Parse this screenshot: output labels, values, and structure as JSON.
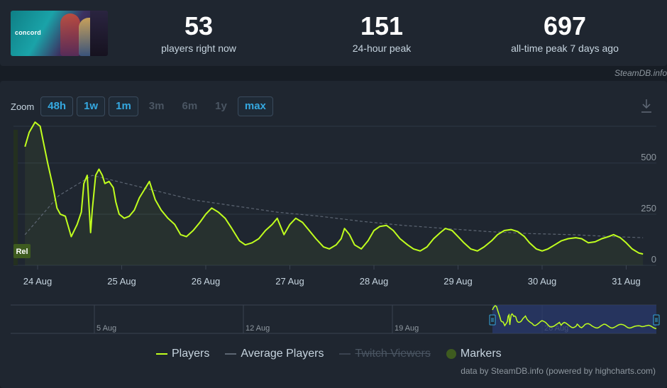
{
  "header": {
    "game_logo_text": "concord",
    "stats": [
      {
        "value": "53",
        "label": "players right now"
      },
      {
        "value": "151",
        "label": "24-hour peak"
      },
      {
        "value": "697",
        "label": "all-time peak 7 days ago"
      }
    ],
    "credit": "SteamDB.info"
  },
  "zoom": {
    "label": "Zoom",
    "buttons": [
      {
        "label": "48h",
        "enabled": true
      },
      {
        "label": "1w",
        "enabled": true
      },
      {
        "label": "1m",
        "enabled": true
      },
      {
        "label": "3m",
        "enabled": false
      },
      {
        "label": "6m",
        "enabled": false
      },
      {
        "label": "1y",
        "enabled": false
      },
      {
        "label": "max",
        "enabled": true
      }
    ]
  },
  "icons": {
    "download": "download-icon"
  },
  "colors": {
    "players": "#c0ff1e",
    "average": "#5d6673",
    "accent": "#35a8e0",
    "navigator_selection": "#2a3a6e"
  },
  "chart_data": {
    "type": "line",
    "x_range": [
      "2024-08-23 12:00",
      "2024-08-31 20:00"
    ],
    "xticks": [
      "24 Aug",
      "25 Aug",
      "26 Aug",
      "27 Aug",
      "28 Aug",
      "29 Aug",
      "30 Aug",
      "31 Aug"
    ],
    "ylim": [
      0,
      680
    ],
    "yticks": [
      "0",
      "250",
      "500"
    ],
    "grid": true,
    "annotation": "Rel",
    "series": [
      {
        "name": "Players",
        "x_days": [
          0,
          0.05,
          0.12,
          0.18,
          0.22,
          0.27,
          0.33,
          0.38,
          0.42,
          0.48,
          0.55,
          0.62,
          0.67,
          0.7,
          0.74,
          0.78,
          0.8,
          0.84,
          0.88,
          0.92,
          0.95,
          1.0,
          1.05,
          1.08,
          1.12,
          1.18,
          1.24,
          1.3,
          1.36,
          1.42,
          1.48,
          1.55,
          1.62,
          1.7,
          1.78,
          1.85,
          1.92,
          2.0,
          2.08,
          2.15,
          2.22,
          2.3,
          2.38,
          2.46,
          2.55,
          2.62,
          2.7,
          2.78,
          2.86,
          2.94,
          3.0,
          3.08,
          3.15,
          3.22,
          3.3,
          3.38,
          3.46,
          3.55,
          3.62,
          3.7,
          3.76,
          3.8,
          3.86,
          3.92,
          4.0,
          4.08,
          4.15,
          4.22,
          4.3,
          4.38,
          4.46,
          4.55,
          4.62,
          4.7,
          4.78,
          4.86,
          4.94,
          5.0,
          5.08,
          5.15,
          5.22,
          5.3,
          5.38,
          5.46,
          5.55,
          5.62,
          5.7,
          5.78,
          5.86,
          5.94,
          6.0,
          6.08,
          6.15,
          6.22,
          6.3,
          6.38,
          6.46,
          6.55,
          6.62,
          6.7,
          6.78,
          6.86,
          6.94,
          7.0,
          7.08,
          7.15,
          7.22,
          7.3,
          7.35
        ],
        "values": [
          580,
          650,
          700,
          680,
          600,
          500,
          390,
          280,
          250,
          240,
          140,
          200,
          260,
          400,
          440,
          160,
          270,
          440,
          470,
          440,
          400,
          410,
          380,
          310,
          250,
          230,
          240,
          270,
          330,
          370,
          410,
          320,
          270,
          230,
          200,
          150,
          140,
          170,
          210,
          250,
          280,
          260,
          230,
          180,
          120,
          100,
          110,
          130,
          170,
          200,
          230,
          150,
          200,
          230,
          210,
          170,
          130,
          90,
          80,
          100,
          130,
          180,
          150,
          100,
          80,
          120,
          170,
          190,
          195,
          170,
          130,
          100,
          80,
          70,
          90,
          130,
          160,
          180,
          170,
          140,
          110,
          80,
          70,
          90,
          120,
          150,
          170,
          175,
          165,
          140,
          110,
          80,
          70,
          80,
          100,
          120,
          130,
          135,
          130,
          110,
          115,
          130,
          140,
          150,
          135,
          110,
          80,
          60,
          55
        ]
      },
      {
        "name": "Average Players",
        "x_days": [
          0,
          0.4,
          0.8,
          1.2,
          1.6,
          2.0,
          2.5,
          3.0,
          3.5,
          4.0,
          4.5,
          5.0,
          5.5,
          6.0,
          6.5,
          7.0,
          7.35
        ],
        "values": [
          150,
          340,
          440,
          400,
          360,
          320,
          290,
          260,
          240,
          215,
          195,
          180,
          165,
          155,
          150,
          140,
          135
        ]
      },
      {
        "name": "Twitch Viewers",
        "visible": false
      }
    ],
    "navigator": {
      "xticks": [
        "5 Aug",
        "12 Aug",
        "19 Aug",
        "26 Aug"
      ]
    },
    "legend": {
      "position": "bottom-center",
      "items": [
        "Players",
        "Average Players",
        "Twitch Viewers",
        "Markers"
      ]
    },
    "credit": "data by SteamDB.info (powered by highcharts.com)"
  }
}
